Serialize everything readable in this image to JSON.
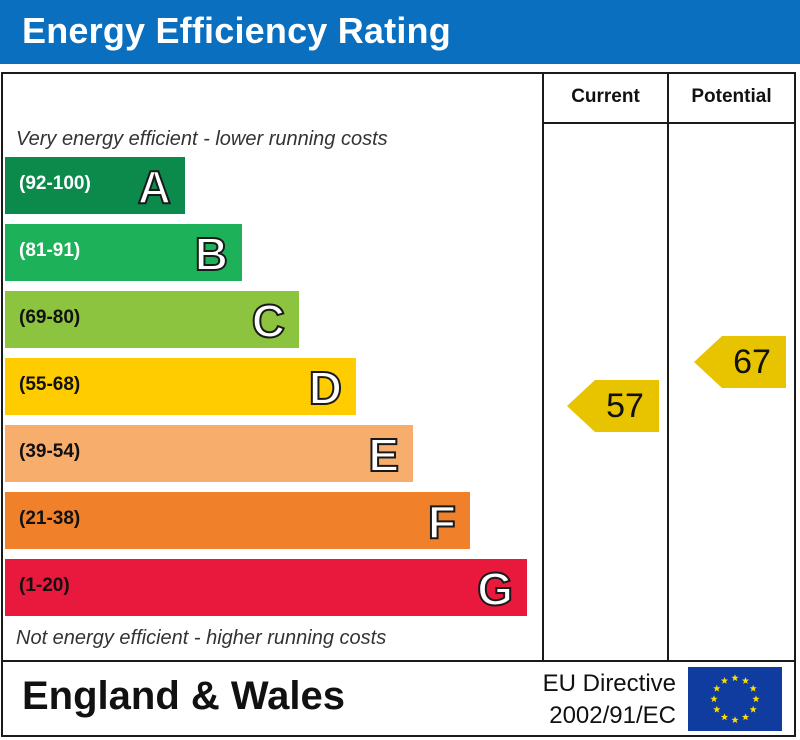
{
  "header": {
    "title": "Energy Efficiency Rating"
  },
  "columns": {
    "current": "Current",
    "potential": "Potential"
  },
  "notes": {
    "top": "Very energy efficient - lower running costs",
    "bottom": "Not energy efficient - higher running costs"
  },
  "chart_data": {
    "type": "bar",
    "title": "Energy Efficiency Rating",
    "categories": [
      "A",
      "B",
      "C",
      "D",
      "E",
      "F",
      "G"
    ],
    "ranges": [
      "(92-100)",
      "(81-91)",
      "(69-80)",
      "(55-68)",
      "(39-54)",
      "(21-38)",
      "(1-20)"
    ],
    "colors": [
      "#0c8a4b",
      "#1db15a",
      "#8cc43f",
      "#ffcc00",
      "#f7ad6b",
      "#f0812a",
      "#e8193d"
    ],
    "range_text_colors": [
      "#ffffff",
      "#ffffff",
      "#111111",
      "#111111",
      "#111111",
      "#111111",
      "#111111"
    ],
    "current": 57,
    "potential": 67,
    "arrow_color": "#e8c400"
  },
  "footer": {
    "country": "England & Wales",
    "directive_line1": "EU Directive",
    "directive_line2": "2002/91/EC"
  },
  "flag": {
    "name": "eu-flag",
    "background": "#0f3c9e",
    "star_color": "#ffdd00"
  }
}
